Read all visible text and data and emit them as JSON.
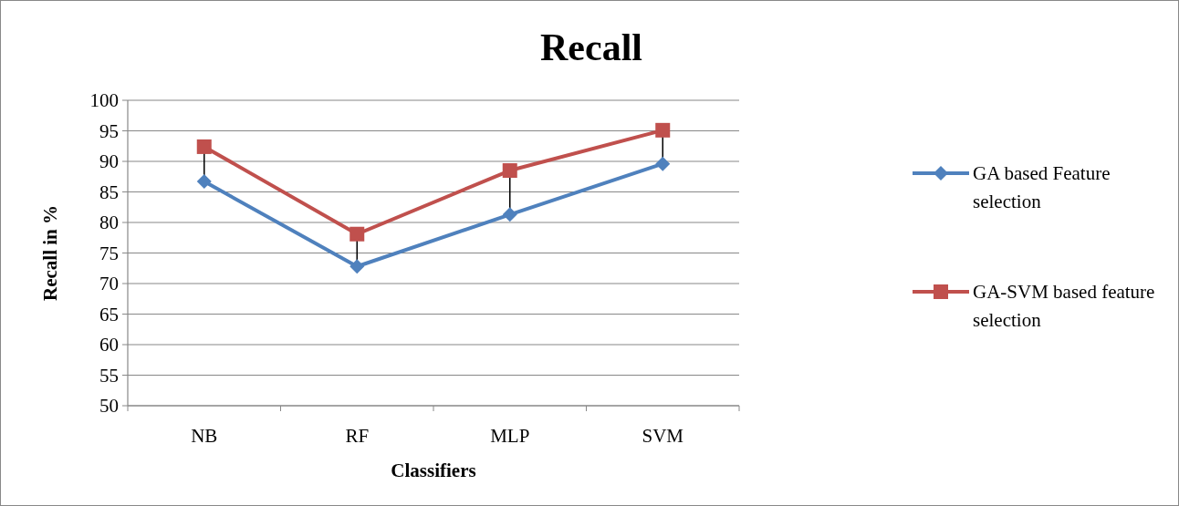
{
  "chart_data": {
    "type": "line",
    "title": "Recall",
    "xlabel": "Classifiers",
    "ylabel": "Recall in %",
    "categories": [
      "NB",
      "RF",
      "MLP",
      "SVM"
    ],
    "series": [
      {
        "name": "GA based Feature selection",
        "color": "#4f81bd",
        "marker": "diamond",
        "values": [
          86.7,
          72.8,
          81.3,
          89.6
        ]
      },
      {
        "name": "GA-SVM based feature selection",
        "color": "#c0504d",
        "marker": "square",
        "values": [
          92.4,
          78.1,
          88.5,
          95.1
        ]
      }
    ],
    "ylim": [
      50,
      100
    ],
    "yticks": [
      50,
      55,
      60,
      65,
      70,
      75,
      80,
      85,
      90,
      95,
      100
    ],
    "grid": "y",
    "legend": "right"
  }
}
